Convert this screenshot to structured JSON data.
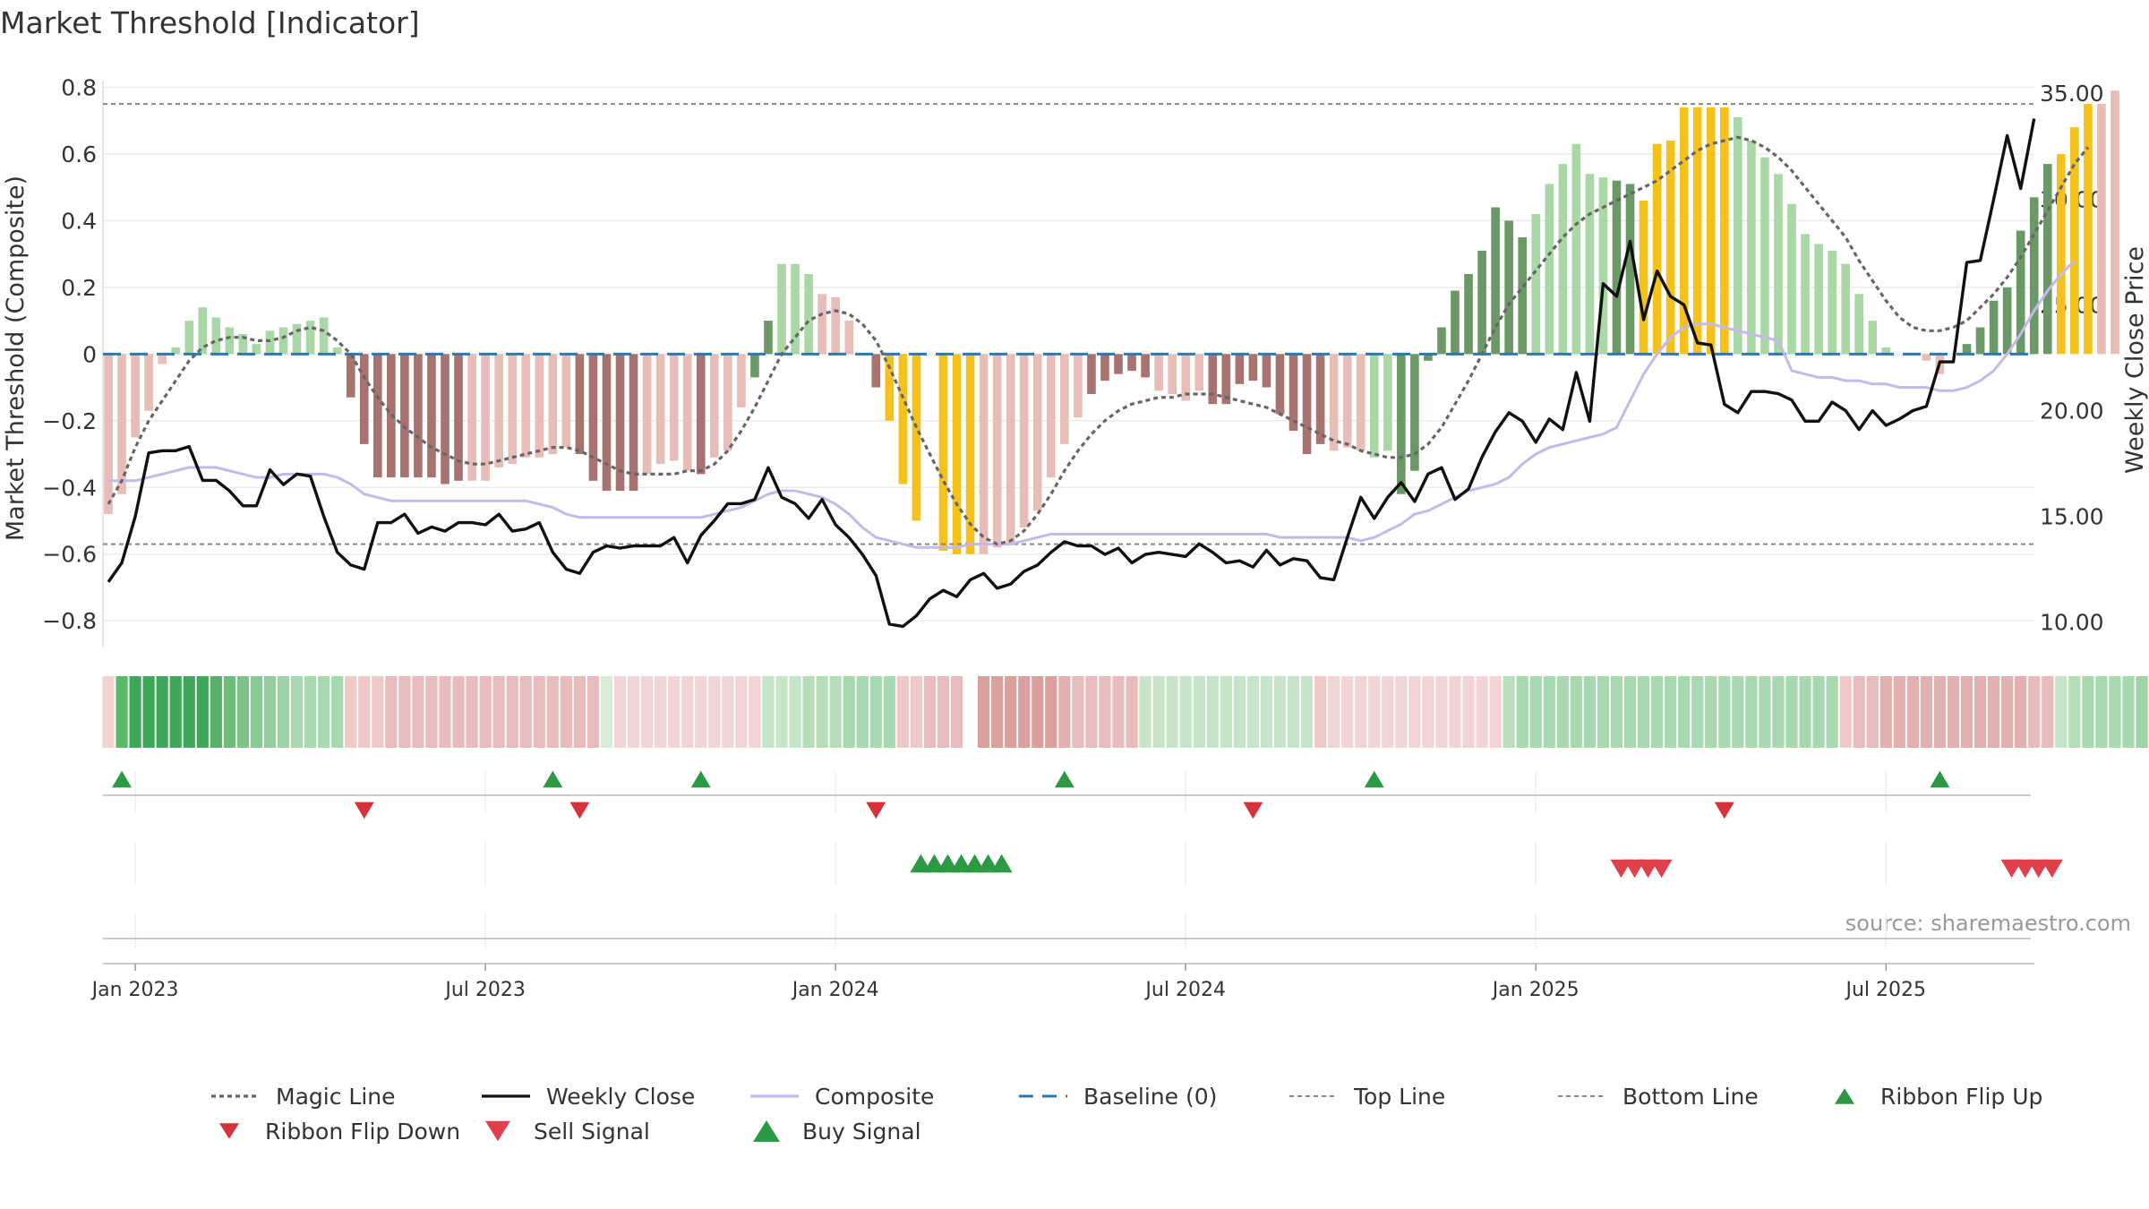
{
  "chart_data": {
    "type": "bar",
    "title": "Market Threshold [Indicator]",
    "ylabel_left": "Market Threshold (Composite)",
    "ylabel_right": "Weekly Close Price",
    "source": "source: sharemaestro.com",
    "ylim_left": [
      -0.88,
      0.82
    ],
    "ylim_right": [
      8.8,
      35.6
    ],
    "yticks_left": [
      {
        "v": 0.8,
        "label": "0.8"
      },
      {
        "v": 0.6,
        "label": "0.6"
      },
      {
        "v": 0.4,
        "label": "0.4"
      },
      {
        "v": 0.2,
        "label": "0.2"
      },
      {
        "v": 0.0,
        "label": "0"
      },
      {
        "v": -0.2,
        "label": "−0.2"
      },
      {
        "v": -0.4,
        "label": "−0.4"
      },
      {
        "v": -0.6,
        "label": "−0.6"
      },
      {
        "v": -0.8,
        "label": "−0.8"
      }
    ],
    "yticks_right": [
      {
        "v": 35,
        "label": "35.00"
      },
      {
        "v": 30,
        "label": "30.00"
      },
      {
        "v": 25,
        "label": "25.00"
      },
      {
        "v": 20,
        "label": "20.00"
      },
      {
        "v": 15,
        "label": "15.00"
      },
      {
        "v": 10,
        "label": "10.00"
      }
    ],
    "xticks": [
      {
        "week": 2,
        "label": "Jan 2023"
      },
      {
        "week": 28,
        "label": "Jul 2023"
      },
      {
        "week": 54,
        "label": "Jan 2024"
      },
      {
        "week": 80,
        "label": "Jul 2024"
      },
      {
        "week": 106,
        "label": "Jan 2025"
      },
      {
        "week": 132,
        "label": "Jul 2025"
      }
    ],
    "x_unit": "weeks from 2022-12-19",
    "top_line": 0.75,
    "bottom_line": -0.57,
    "baseline": 0,
    "composite_bars": [
      -0.48,
      -0.42,
      -0.25,
      -0.17,
      -0.03,
      0.02,
      0.1,
      0.14,
      0.11,
      0.08,
      0.06,
      0.03,
      0.07,
      0.08,
      0.09,
      0.1,
      0.11,
      0.02,
      -0.13,
      -0.27,
      -0.37,
      -0.37,
      -0.37,
      -0.37,
      -0.37,
      -0.39,
      -0.38,
      -0.38,
      -0.38,
      -0.34,
      -0.33,
      -0.31,
      -0.31,
      -0.3,
      -0.28,
      -0.3,
      -0.38,
      -0.41,
      -0.41,
      -0.41,
      -0.36,
      -0.33,
      -0.32,
      -0.35,
      -0.36,
      -0.31,
      -0.29,
      -0.16,
      -0.07,
      0.1,
      0.27,
      0.27,
      0.24,
      0.18,
      0.17,
      0.1,
      0.0,
      -0.1,
      -0.2,
      -0.39,
      -0.5,
      0.0,
      -0.59,
      -0.6,
      -0.6,
      -0.6,
      -0.58,
      -0.57,
      -0.52,
      -0.47,
      -0.37,
      -0.27,
      -0.19,
      -0.12,
      -0.08,
      -0.06,
      -0.05,
      -0.07,
      -0.11,
      -0.12,
      -0.14,
      -0.11,
      -0.15,
      -0.15,
      -0.09,
      -0.08,
      -0.1,
      -0.18,
      -0.23,
      -0.3,
      -0.27,
      -0.29,
      -0.28,
      -0.29,
      -0.31,
      -0.29,
      -0.42,
      -0.35,
      -0.02,
      0.08,
      0.19,
      0.24,
      0.31,
      0.44,
      0.4,
      0.35,
      0.42,
      0.51,
      0.57,
      0.63,
      0.54,
      0.53,
      0.52,
      0.51,
      0.46,
      0.63,
      0.64,
      0.74,
      0.74,
      0.74,
      0.74,
      0.71,
      0.64,
      0.59,
      0.54,
      0.45,
      0.36,
      0.33,
      0.31,
      0.27,
      0.18,
      0.1,
      0.02,
      0.0,
      0.0,
      -0.02,
      -0.06,
      0.0,
      0.03,
      0.08,
      0.16,
      0.2,
      0.37,
      0.47,
      0.57,
      0.6,
      0.68,
      0.75,
      0.75,
      0.79
    ],
    "weekly_close": [
      11.9,
      12.8,
      15.0,
      18.0,
      18.1,
      18.1,
      18.3,
      16.7,
      16.7,
      16.2,
      15.5,
      15.5,
      17.2,
      16.5,
      17.0,
      16.9,
      15.0,
      13.3,
      12.7,
      12.5,
      14.7,
      14.7,
      15.1,
      14.2,
      14.5,
      14.3,
      14.7,
      14.7,
      14.6,
      15.1,
      14.3,
      14.4,
      14.7,
      13.3,
      12.5,
      12.3,
      13.3,
      13.6,
      13.5,
      13.6,
      13.6,
      13.6,
      14.0,
      12.8,
      14.1,
      14.8,
      15.6,
      15.6,
      15.8,
      17.3,
      15.9,
      15.6,
      14.9,
      15.8,
      14.6,
      14.0,
      13.2,
      12.2,
      9.9,
      9.8,
      10.3,
      11.1,
      11.5,
      11.2,
      12.0,
      12.3,
      11.6,
      11.8,
      12.4,
      12.7,
      13.3,
      13.8,
      13.6,
      13.6,
      13.2,
      13.5,
      12.8,
      13.2,
      13.3,
      13.2,
      13.1,
      13.7,
      13.3,
      12.8,
      12.9,
      12.6,
      13.4,
      12.7,
      13.0,
      12.9,
      12.1,
      12.0,
      14.0,
      15.9,
      14.9,
      15.9,
      16.6,
      15.7,
      17.0,
      17.3,
      15.8,
      16.3,
      17.8,
      19.0,
      19.9,
      19.5,
      18.5,
      19.6,
      19.1,
      21.8,
      19.5,
      26.0,
      25.4,
      28.0,
      24.3,
      26.6,
      25.4,
      25.0,
      23.2,
      23.1,
      20.3,
      19.9,
      20.9,
      20.9,
      20.8,
      20.5,
      19.5,
      19.5,
      20.4,
      20.0,
      19.1,
      20.0,
      19.3,
      19.6,
      20.0,
      20.2,
      22.3,
      22.3,
      27.0,
      27.1,
      30.0,
      33.0,
      30.5,
      33.8
    ],
    "magic_line": [
      -0.45,
      -0.38,
      -0.28,
      -0.2,
      -0.14,
      -0.08,
      -0.02,
      0.02,
      0.04,
      0.05,
      0.05,
      0.04,
      0.04,
      0.05,
      0.07,
      0.08,
      0.07,
      0.04,
      0.0,
      -0.07,
      -0.13,
      -0.18,
      -0.22,
      -0.25,
      -0.28,
      -0.3,
      -0.32,
      -0.33,
      -0.33,
      -0.32,
      -0.31,
      -0.3,
      -0.29,
      -0.28,
      -0.28,
      -0.29,
      -0.31,
      -0.33,
      -0.35,
      -0.36,
      -0.36,
      -0.36,
      -0.36,
      -0.35,
      -0.35,
      -0.33,
      -0.29,
      -0.23,
      -0.16,
      -0.08,
      0.0,
      0.05,
      0.1,
      0.12,
      0.13,
      0.12,
      0.09,
      0.04,
      -0.04,
      -0.13,
      -0.22,
      -0.3,
      -0.38,
      -0.45,
      -0.51,
      -0.55,
      -0.57,
      -0.56,
      -0.53,
      -0.48,
      -0.42,
      -0.35,
      -0.29,
      -0.24,
      -0.2,
      -0.17,
      -0.15,
      -0.14,
      -0.13,
      -0.13,
      -0.12,
      -0.12,
      -0.12,
      -0.13,
      -0.14,
      -0.15,
      -0.16,
      -0.18,
      -0.2,
      -0.22,
      -0.24,
      -0.26,
      -0.27,
      -0.29,
      -0.3,
      -0.31,
      -0.31,
      -0.3,
      -0.27,
      -0.22,
      -0.15,
      -0.08,
      0.0,
      0.08,
      0.15,
      0.2,
      0.25,
      0.3,
      0.35,
      0.39,
      0.42,
      0.44,
      0.46,
      0.48,
      0.5,
      0.52,
      0.55,
      0.58,
      0.61,
      0.63,
      0.64,
      0.65,
      0.64,
      0.62,
      0.59,
      0.55,
      0.5,
      0.45,
      0.4,
      0.35,
      0.28,
      0.22,
      0.16,
      0.11,
      0.08,
      0.07,
      0.07,
      0.08,
      0.1,
      0.14,
      0.18,
      0.23,
      0.29,
      0.36,
      0.43,
      0.5,
      0.57,
      0.62
    ],
    "composite_line": [
      -0.38,
      -0.38,
      -0.38,
      -0.37,
      -0.36,
      -0.35,
      -0.34,
      -0.34,
      -0.34,
      -0.35,
      -0.36,
      -0.37,
      -0.37,
      -0.36,
      -0.36,
      -0.36,
      -0.36,
      -0.37,
      -0.39,
      -0.42,
      -0.43,
      -0.44,
      -0.44,
      -0.44,
      -0.44,
      -0.44,
      -0.44,
      -0.44,
      -0.44,
      -0.44,
      -0.44,
      -0.44,
      -0.45,
      -0.46,
      -0.48,
      -0.49,
      -0.49,
      -0.49,
      -0.49,
      -0.49,
      -0.49,
      -0.49,
      -0.49,
      -0.49,
      -0.49,
      -0.48,
      -0.47,
      -0.46,
      -0.44,
      -0.42,
      -0.41,
      -0.41,
      -0.42,
      -0.43,
      -0.45,
      -0.48,
      -0.52,
      -0.55,
      -0.56,
      -0.57,
      -0.58,
      -0.58,
      -0.58,
      -0.58,
      -0.57,
      -0.57,
      -0.57,
      -0.57,
      -0.56,
      -0.55,
      -0.54,
      -0.54,
      -0.54,
      -0.54,
      -0.54,
      -0.54,
      -0.54,
      -0.54,
      -0.54,
      -0.54,
      -0.54,
      -0.54,
      -0.54,
      -0.54,
      -0.54,
      -0.54,
      -0.54,
      -0.55,
      -0.55,
      -0.55,
      -0.55,
      -0.55,
      -0.55,
      -0.56,
      -0.55,
      -0.53,
      -0.51,
      -0.48,
      -0.47,
      -0.45,
      -0.43,
      -0.41,
      -0.4,
      -0.39,
      -0.37,
      -0.33,
      -0.3,
      -0.28,
      -0.27,
      -0.26,
      -0.25,
      -0.24,
      -0.22,
      -0.14,
      -0.06,
      0.0,
      0.05,
      0.08,
      0.09,
      0.09,
      0.08,
      0.07,
      0.06,
      0.05,
      0.04,
      -0.05,
      -0.06,
      -0.07,
      -0.07,
      -0.08,
      -0.08,
      -0.09,
      -0.09,
      -0.1,
      -0.1,
      -0.1,
      -0.11,
      -0.11,
      -0.1,
      -0.08,
      -0.05,
      0.0,
      0.06,
      0.13,
      0.19,
      0.24,
      0.28
    ],
    "bar_color_codes": "rrrrrgggggggggggggRRRRRRRRRrrrrrrrrRRRRRrrrrRrrrGGgggrrrRRyyyyyyyrrrrrrrrRRRRRrrrrRRRRRRRRRrrrggGGGGGGGGGGggggggGGyyyyyyyggggggggggggrRrrgGGGGGGGyyy",
    "bar_colors": {
      "r": "#e8bcb7",
      "R": "#a8726f",
      "g": "#a9d8a6",
      "G": "#6a9966",
      "y": "#f5c21b"
    },
    "ribbon_colors": [
      "#f2d4d4",
      "#5cb86a",
      "#3ea85a",
      "#3ea85a",
      "#3ea85a",
      "#3ea85a",
      "#3ea85a",
      "#3ea85a",
      "#56b167",
      "#6fbd7c",
      "#7cc489",
      "#88c994",
      "#94ce9e",
      "#9fd3a7",
      "#a8d8b0",
      "#a8d8b0",
      "#a8d8b0",
      "#a8d8b0",
      "#eec9c8",
      "#eec9c8",
      "#eec9c8",
      "#e8bcbb",
      "#e8bcbb",
      "#e8bcbb",
      "#e8bcbb",
      "#e8bcbb",
      "#e8bcbb",
      "#e8bcbb",
      "#e8bcbb",
      "#e8bcbb",
      "#e8bcbb",
      "#e8bcbb",
      "#e8bcbb",
      "#e8bcbb",
      "#e8bcbb",
      "#e8bcbb",
      "#e8bcbb",
      "#d8ecd8",
      "#f2d4d4",
      "#f2d4d4",
      "#f2d4d4",
      "#f2d4d4",
      "#f2d4d4",
      "#f2d4d4",
      "#f2d4d4",
      "#f2d4d4",
      "#f2d4d4",
      "#f2d4d4",
      "#f2d4d4",
      "#c6e5c8",
      "#c6e5c8",
      "#c6e5c8",
      "#b6dfb9",
      "#b6dfb9",
      "#b6dfb9",
      "#a8d8b0",
      "#a8d8b0",
      "#a8d8b0",
      "#a8d8b0",
      "#eec9c8",
      "#eec9c8",
      "#e8bcbb",
      "#e8bcbb",
      "#e8bcbb",
      "#ffffff",
      "#d9a09e",
      "#d9a09e",
      "#d9a09e",
      "#d9a09e",
      "#d9a09e",
      "#d9a09e",
      "#e2b0af",
      "#e8bcbb",
      "#e8bcbb",
      "#e8bcbb",
      "#e8bcbb",
      "#e8bcbb",
      "#c6e5c8",
      "#c6e5c8",
      "#c6e5c8",
      "#c6e5c8",
      "#c6e5c8",
      "#c6e5c8",
      "#c6e5c8",
      "#c6e5c8",
      "#c6e5c8",
      "#c6e5c8",
      "#c6e5c8",
      "#c6e5c8",
      "#c6e5c8",
      "#eec9c8",
      "#f2d4d4",
      "#f2d4d4",
      "#f2d4d4",
      "#f2d4d4",
      "#f2d4d4",
      "#f2d4d4",
      "#f2d4d4",
      "#f2d4d4",
      "#f2d4d4",
      "#f2d4d4",
      "#f2d4d4",
      "#f2d4d4",
      "#f2d4d4",
      "#b8e0bc",
      "#a8d8b0",
      "#a8d8b0",
      "#a8d8b0",
      "#a8d8b0",
      "#a8d8b0",
      "#a8d8b0",
      "#a8d8b0",
      "#a8d8b0",
      "#a8d8b0",
      "#a8d8b0",
      "#a8d8b0",
      "#a8d8b0",
      "#a8d8b0",
      "#a8d8b0",
      "#a8d8b0",
      "#a8d8b0",
      "#a8d8b0",
      "#a8d8b0",
      "#a8d8b0",
      "#a8d8b0",
      "#a8d8b0",
      "#a8d8b0",
      "#a8d8b0",
      "#a8d8b0",
      "#eec9c8",
      "#e8bcbb",
      "#e8bcbb",
      "#e2b0af",
      "#e2b0af",
      "#e2b0af",
      "#e2b0af",
      "#e2b0af",
      "#e2b0af",
      "#e2b0af",
      "#e2b0af",
      "#e2b0af",
      "#e2b0af",
      "#e2b0af",
      "#e8bcbb",
      "#e8bcbb",
      "#c6e5c8",
      "#b6dfb9",
      "#a8d8b0",
      "#a8d8b0",
      "#a8d8b0",
      "#a8d8b0",
      "#9fd3a7",
      "#9fd3a7",
      "#9fd3a7"
    ],
    "ribbon_flip_up_weeks": [
      1,
      33,
      44,
      71,
      94,
      136
    ],
    "ribbon_flip_down_weeks": [
      19,
      35,
      57,
      85,
      120
    ],
    "buy_signal_weeks": [
      60,
      61,
      62,
      63,
      64,
      65,
      66
    ],
    "sell_signal_weeks": [
      112,
      113,
      114,
      115,
      141,
      142,
      143,
      144
    ],
    "legend_placement": "bottom",
    "grid": true
  },
  "legend": [
    {
      "key": "magic",
      "label": "Magic Line"
    },
    {
      "key": "close",
      "label": "Weekly Close"
    },
    {
      "key": "composite",
      "label": "Composite"
    },
    {
      "key": "baseline",
      "label": "Baseline (0)"
    },
    {
      "key": "top",
      "label": "Top Line"
    },
    {
      "key": "bottom",
      "label": "Bottom Line"
    },
    {
      "key": "flipup",
      "label": "Ribbon Flip Up"
    },
    {
      "key": "flipdown",
      "label": "Ribbon Flip Down"
    },
    {
      "key": "sell",
      "label": "Sell Signal"
    },
    {
      "key": "buy",
      "label": "Buy Signal"
    }
  ],
  "colors": {
    "magic": "#666666",
    "close": "#111111",
    "composite": "#c4b9ea",
    "baseline": "#2a7ab0",
    "ref_lines": "#888888",
    "up": "#2c9a45",
    "down": "#d6323c",
    "sell": "#e0404c",
    "grid": "#ececec",
    "text": "#333333"
  }
}
